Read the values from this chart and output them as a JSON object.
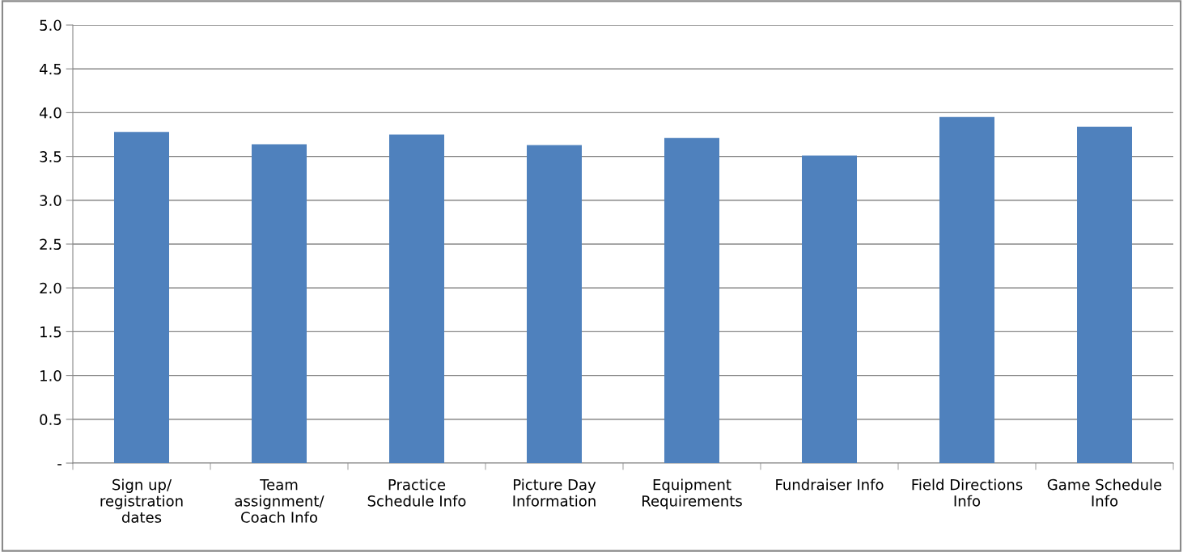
{
  "chart_data": {
    "type": "bar",
    "categories": [
      "Sign up/\nregistration\ndates",
      "Team\nassignment/\nCoach Info",
      "Practice\nSchedule Info",
      "Picture Day\nInformation",
      "Equipment\nRequirements",
      "Fundraiser Info",
      "Field Directions\nInfo",
      "Game Schedule\nInfo"
    ],
    "values": [
      3.78,
      3.64,
      3.75,
      3.63,
      3.71,
      3.51,
      3.95,
      3.84
    ],
    "color": "#4f81bd",
    "ylim": [
      0,
      5
    ],
    "yticks": [
      {
        "value": 0,
        "label": "-"
      },
      {
        "value": 0.5,
        "label": "0.5"
      },
      {
        "value": 1,
        "label": "1.0"
      },
      {
        "value": 1.5,
        "label": "1.5"
      },
      {
        "value": 2,
        "label": "2.0"
      },
      {
        "value": 2.5,
        "label": "2.5"
      },
      {
        "value": 3,
        "label": "3.0"
      },
      {
        "value": 3.5,
        "label": "3.5"
      },
      {
        "value": 4,
        "label": "4.0"
      },
      {
        "value": 4.5,
        "label": "4.5"
      },
      {
        "value": 5,
        "label": "5.0"
      }
    ],
    "grid": "y"
  }
}
